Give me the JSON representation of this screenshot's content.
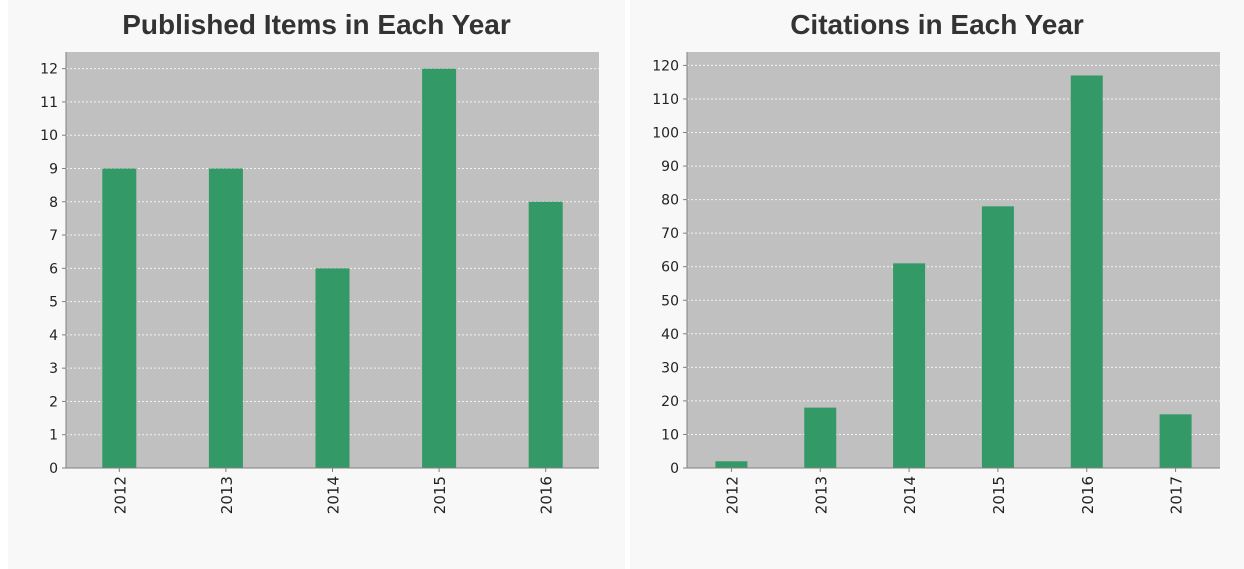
{
  "chart_data": [
    {
      "type": "bar",
      "title": "Published Items in Each Year",
      "categories": [
        "2012",
        "2013",
        "2014",
        "2015",
        "2016"
      ],
      "values": [
        9,
        9,
        6,
        12,
        8
      ],
      "xlabel": "",
      "ylabel": "",
      "ylim": [
        0,
        12.5
      ],
      "yticks": [
        0,
        1,
        2,
        3,
        4,
        5,
        6,
        7,
        8,
        9,
        10,
        11,
        12
      ],
      "grid": true,
      "legend": "none",
      "colors": {
        "bar": "#339966",
        "plot_bg": "#c0c0c0",
        "grid": "#f2f2f2",
        "axis": "#808080"
      }
    },
    {
      "type": "bar",
      "title": "Citations in Each Year",
      "categories": [
        "2012",
        "2013",
        "2014",
        "2015",
        "2016",
        "2017"
      ],
      "values": [
        2,
        18,
        61,
        78,
        117,
        16
      ],
      "xlabel": "",
      "ylabel": "",
      "ylim": [
        0,
        124
      ],
      "yticks": [
        0,
        10,
        20,
        30,
        40,
        50,
        60,
        70,
        80,
        90,
        100,
        110,
        120
      ],
      "grid": true,
      "legend": "none",
      "colors": {
        "bar": "#339966",
        "plot_bg": "#c0c0c0",
        "grid": "#f2f2f2",
        "axis": "#808080"
      }
    }
  ]
}
